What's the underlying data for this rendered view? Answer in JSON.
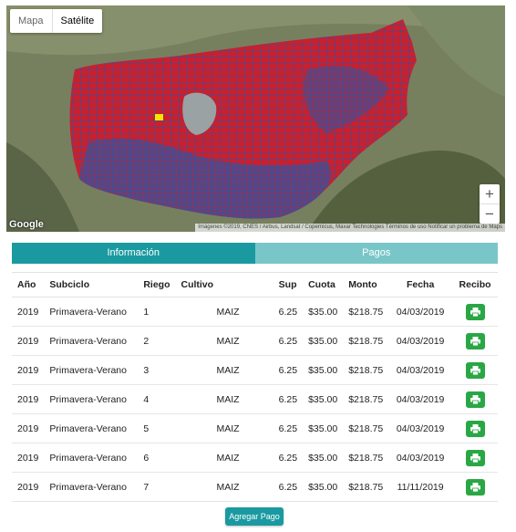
{
  "map": {
    "type_mapa": "Mapa",
    "type_satelite": "Satélite",
    "zoom_in": "+",
    "zoom_out": "−",
    "logo": "Google",
    "attribution": "Imágenes ©2019, CNES / Airbus, Landsat / Copernicus, Maxar Technologies    Términos de uso   Notificar un problema de Maps",
    "colors": {
      "parcel_red": "#c8202e",
      "parcel_blue": "#3b4f9a",
      "highlight": "#f2e600"
    }
  },
  "tabs": {
    "info_label": "Información",
    "pagos_label": "Pagos"
  },
  "table": {
    "headers": {
      "anio": "Año",
      "subciclo": "Subciclo",
      "riego": "Riego",
      "cultivo": "Cultivo",
      "sup": "Sup",
      "cuota": "Cuota",
      "monto": "Monto",
      "fecha": "Fecha",
      "recibo": "Recibo"
    },
    "rows": [
      {
        "anio": "2019",
        "subciclo": "Primavera-Verano",
        "riego": "1",
        "cultivo": "MAIZ",
        "sup": "6.25",
        "cuota": "$35.00",
        "monto": "$218.75",
        "fecha": "04/03/2019"
      },
      {
        "anio": "2019",
        "subciclo": "Primavera-Verano",
        "riego": "2",
        "cultivo": "MAIZ",
        "sup": "6.25",
        "cuota": "$35.00",
        "monto": "$218.75",
        "fecha": "04/03/2019"
      },
      {
        "anio": "2019",
        "subciclo": "Primavera-Verano",
        "riego": "3",
        "cultivo": "MAIZ",
        "sup": "6.25",
        "cuota": "$35.00",
        "monto": "$218.75",
        "fecha": "04/03/2019"
      },
      {
        "anio": "2019",
        "subciclo": "Primavera-Verano",
        "riego": "4",
        "cultivo": "MAIZ",
        "sup": "6.25",
        "cuota": "$35.00",
        "monto": "$218.75",
        "fecha": "04/03/2019"
      },
      {
        "anio": "2019",
        "subciclo": "Primavera-Verano",
        "riego": "5",
        "cultivo": "MAIZ",
        "sup": "6.25",
        "cuota": "$35.00",
        "monto": "$218.75",
        "fecha": "04/03/2019"
      },
      {
        "anio": "2019",
        "subciclo": "Primavera-Verano",
        "riego": "6",
        "cultivo": "MAIZ",
        "sup": "6.25",
        "cuota": "$35.00",
        "monto": "$218.75",
        "fecha": "04/03/2019"
      },
      {
        "anio": "2019",
        "subciclo": "Primavera-Verano",
        "riego": "7",
        "cultivo": "MAIZ",
        "sup": "6.25",
        "cuota": "$35.00",
        "monto": "$218.75",
        "fecha": "11/11/2019"
      }
    ],
    "print_icon": "print-icon"
  },
  "actions": {
    "add_payment_label": "Agregar Pago"
  }
}
